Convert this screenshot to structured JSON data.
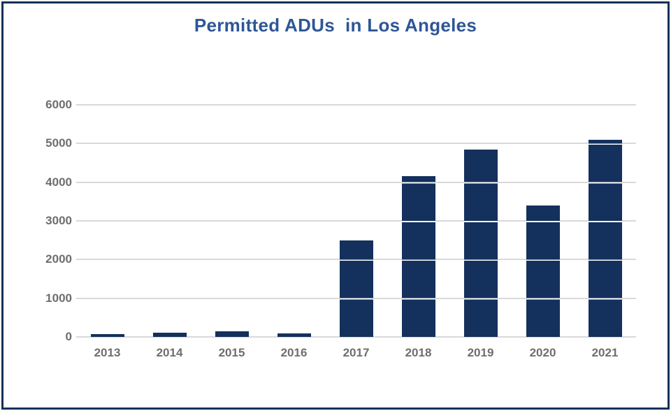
{
  "title": "Permitted ADUs  in Los Angeles",
  "colors": {
    "bar": "#14305c",
    "bar_grid_overlay": "#ffffff",
    "title_text": "#2e5696",
    "tick_text": "#6e6e6e",
    "gridline": "#d9d9d9",
    "border": "#16315a",
    "background": "#ffffff"
  },
  "chart_data": {
    "type": "bar",
    "title": "Permitted ADUs  in Los Angeles",
    "categories": [
      "2013",
      "2014",
      "2015",
      "2016",
      "2017",
      "2018",
      "2019",
      "2020",
      "2021"
    ],
    "values": [
      70,
      100,
      150,
      90,
      2500,
      4150,
      4850,
      3400,
      5100
    ],
    "xlabel": "",
    "ylabel": "",
    "ylim": [
      0,
      6000
    ],
    "yticks": [
      0,
      1000,
      2000,
      3000,
      4000,
      5000,
      6000
    ],
    "grid": "horizontal",
    "legend": "none"
  }
}
